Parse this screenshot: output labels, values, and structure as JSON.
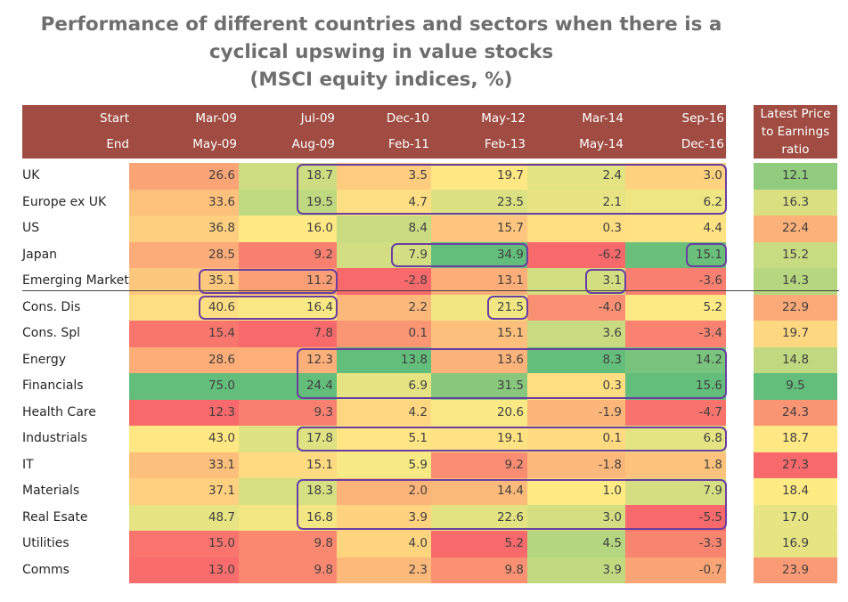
{
  "title": {
    "line1": "Performance of different countries and sectors when there is a",
    "line2": "cyclical upswing in value stocks",
    "line3": "(MSCI equity indices, %)"
  },
  "colors": {
    "header_bg": "#a14c42",
    "highlight_border": "#6a3fa0",
    "scale_low": "#f8696b",
    "scale_mid": "#ffeb84",
    "scale_high": "#63be7b"
  },
  "chart_data": {
    "type": "table",
    "header": {
      "start_label": "Start",
      "end_label": "End",
      "pe_label_lines": [
        "Latest Price",
        "to Earnings",
        "ratio"
      ]
    },
    "periods": [
      {
        "start": "Mar-09",
        "end": "May-09"
      },
      {
        "start": "Jul-09",
        "end": "Aug-09"
      },
      {
        "start": "Dec-10",
        "end": "Feb-11"
      },
      {
        "start": "May-12",
        "end": "Feb-13"
      },
      {
        "start": "Mar-14",
        "end": "May-14"
      },
      {
        "start": "Sep-16",
        "end": "Dec-16"
      }
    ],
    "rows": [
      {
        "label": "UK",
        "values": [
          "26.6",
          "18.7",
          "3.5",
          "19.7",
          "2.4",
          "3.0"
        ],
        "pe": "12.1"
      },
      {
        "label": "Europe ex UK",
        "values": [
          "33.6",
          "19.5",
          "4.7",
          "23.5",
          "2.1",
          "6.2"
        ],
        "pe": "16.3"
      },
      {
        "label": "US",
        "values": [
          "36.8",
          "16.0",
          "8.4",
          "15.7",
          "0.3",
          "4.4"
        ],
        "pe": "22.4"
      },
      {
        "label": "Japan",
        "values": [
          "28.5",
          "9.2",
          "7.9",
          "34.9",
          "-6.2",
          "15.1"
        ],
        "pe": "15.2"
      },
      {
        "label": "Emerging Market",
        "values": [
          "35.1",
          "11.2",
          "-2.8",
          "13.1",
          "3.1",
          "-3.6"
        ],
        "pe": "14.3"
      },
      {
        "label": "Cons. Dis",
        "values": [
          "40.6",
          "16.4",
          "2.2",
          "21.5",
          "-4.0",
          "5.2"
        ],
        "pe": "22.9"
      },
      {
        "label": "Cons. Spl",
        "values": [
          "15.4",
          "7.8",
          "0.1",
          "15.1",
          "3.6",
          "-3.4"
        ],
        "pe": "19.7"
      },
      {
        "label": "Energy",
        "values": [
          "28.6",
          "12.3",
          "13.8",
          "13.6",
          "8.3",
          "14.2"
        ],
        "pe": "14.8"
      },
      {
        "label": "Financials",
        "values": [
          "75.0",
          "24.4",
          "6.9",
          "31.5",
          "0.3",
          "15.6"
        ],
        "pe": "9.5"
      },
      {
        "label": "Health Care",
        "values": [
          "12.3",
          "9.3",
          "4.2",
          "20.6",
          "-1.9",
          "-4.7"
        ],
        "pe": "24.3"
      },
      {
        "label": "Industrials",
        "values": [
          "43.0",
          "17.8",
          "5.1",
          "19.1",
          "0.1",
          "6.8"
        ],
        "pe": "18.7"
      },
      {
        "label": "IT",
        "values": [
          "33.1",
          "15.1",
          "5.9",
          "9.2",
          "-1.8",
          "1.8"
        ],
        "pe": "27.3"
      },
      {
        "label": "Materials",
        "values": [
          "37.1",
          "18.3",
          "2.0",
          "14.4",
          "1.0",
          "7.9"
        ],
        "pe": "18.4"
      },
      {
        "label": "Real Esate",
        "values": [
          "48.7",
          "16.8",
          "3.9",
          "22.6",
          "3.0",
          "-5.5"
        ],
        "pe": "17.0"
      },
      {
        "label": "Utilities",
        "values": [
          "15.0",
          "9.8",
          "4.0",
          "5.2",
          "4.5",
          "-3.3"
        ],
        "pe": "16.9"
      },
      {
        "label": "Comms",
        "values": [
          "13.0",
          "9.8",
          "2.3",
          "9.8",
          "3.9",
          "-0.7"
        ],
        "pe": "23.9"
      }
    ],
    "highlight_boxes": [
      {
        "row_start": 0,
        "row_end": 1,
        "col_start": 1,
        "col_end": 5
      },
      {
        "row_start": 3,
        "row_end": 3,
        "col_start": 2,
        "col_end": 3
      },
      {
        "row_start": 3,
        "row_end": 3,
        "col_start": 5,
        "col_end": 5
      },
      {
        "row_start": 4,
        "row_end": 4,
        "col_start": 0,
        "col_end": 1
      },
      {
        "row_start": 4,
        "row_end": 4,
        "col_start": 4,
        "col_end": 4
      },
      {
        "row_start": 5,
        "row_end": 5,
        "col_start": 0,
        "col_end": 1
      },
      {
        "row_start": 5,
        "row_end": 5,
        "col_start": 3,
        "col_end": 3
      },
      {
        "row_start": 7,
        "row_end": 8,
        "col_start": 1,
        "col_end": 5
      },
      {
        "row_start": 10,
        "row_end": 10,
        "col_start": 1,
        "col_end": 5
      },
      {
        "row_start": 12,
        "row_end": 13,
        "col_start": 1,
        "col_end": 5
      }
    ],
    "separator_after_row": 4
  }
}
